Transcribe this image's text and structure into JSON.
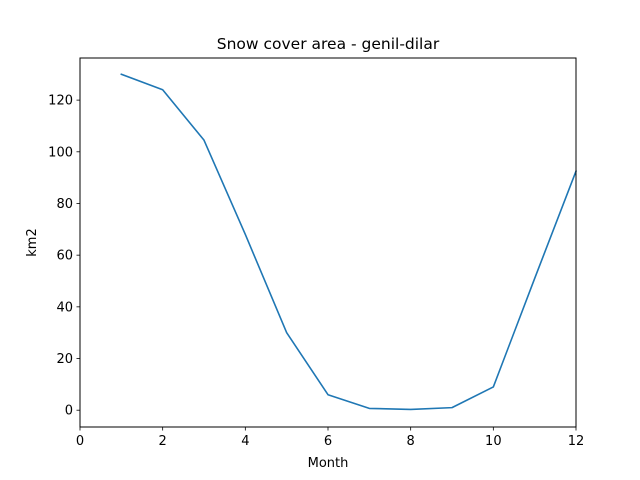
{
  "chart_data": {
    "type": "line",
    "title": "Snow cover area - genil-dilar",
    "xlabel": "Month",
    "ylabel": "km2",
    "xlim": [
      0,
      12
    ],
    "ylim": [
      -6.5,
      136.3
    ],
    "xticks": [
      0,
      2,
      4,
      6,
      8,
      10,
      12
    ],
    "yticks": [
      0,
      20,
      40,
      60,
      80,
      100,
      120
    ],
    "grid": false,
    "series": [
      {
        "color": "#1f77b4",
        "x": [
          1,
          2,
          3,
          4,
          5,
          6,
          7,
          8,
          9,
          10,
          11,
          12
        ],
        "values": [
          130.0,
          124.0,
          104.5,
          68.0,
          30.0,
          6.0,
          0.7,
          0.3,
          1.0,
          9.0,
          51.0,
          92.5
        ]
      }
    ]
  }
}
